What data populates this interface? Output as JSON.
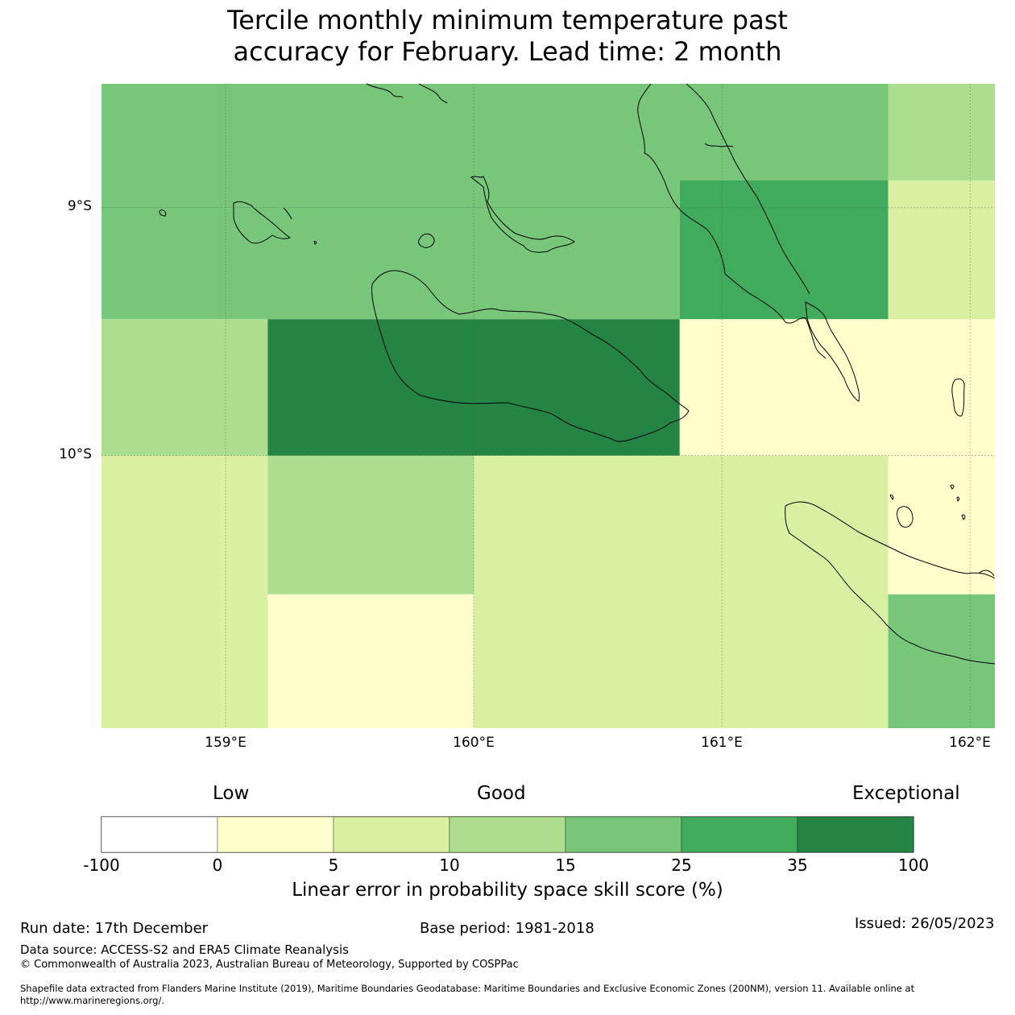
{
  "title_line1": "Tercile monthly minimum temperature past",
  "title_line2": "accuracy for February. Lead time: 2 month",
  "map": {
    "lat_labels": [
      "9°S",
      "10°S"
    ],
    "lon_labels": [
      "159°E",
      "160°E",
      "161°E",
      "162°E"
    ],
    "extent": {
      "lon_min": 158.5,
      "lon_max": 162.1,
      "lat_north": -8.5,
      "lat_south": -11.1
    },
    "cells": [
      {
        "lon0": 158.5,
        "lon1": 161.67,
        "lat0": -8.5,
        "lat1": -8.89,
        "bin": 4
      },
      {
        "lon0": 161.67,
        "lon1": 162.1,
        "lat0": -8.5,
        "lat1": -8.89,
        "bin": 3
      },
      {
        "lon0": 158.5,
        "lon1": 160.83,
        "lat0": -8.89,
        "lat1": -9.45,
        "bin": 4
      },
      {
        "lon0": 160.83,
        "lon1": 161.67,
        "lat0": -8.89,
        "lat1": -9.45,
        "bin": 5
      },
      {
        "lon0": 161.67,
        "lon1": 162.1,
        "lat0": -8.89,
        "lat1": -9.45,
        "bin": 2
      },
      {
        "lon0": 158.5,
        "lon1": 159.17,
        "lat0": -9.45,
        "lat1": -10.0,
        "bin": 3
      },
      {
        "lon0": 159.17,
        "lon1": 160.83,
        "lat0": -9.45,
        "lat1": -10.0,
        "bin": 6
      },
      {
        "lon0": 160.83,
        "lon1": 162.1,
        "lat0": -9.45,
        "lat1": -10.0,
        "bin": 1
      },
      {
        "lon0": 158.5,
        "lon1": 159.17,
        "lat0": -10.0,
        "lat1": -11.1,
        "bin": 2
      },
      {
        "lon0": 159.17,
        "lon1": 160.0,
        "lat0": -10.0,
        "lat1": -10.56,
        "bin": 3
      },
      {
        "lon0": 159.17,
        "lon1": 160.0,
        "lat0": -10.56,
        "lat1": -11.1,
        "bin": 1
      },
      {
        "lon0": 160.0,
        "lon1": 161.67,
        "lat0": -10.0,
        "lat1": -11.1,
        "bin": 2
      },
      {
        "lon0": 161.67,
        "lon1": 162.1,
        "lat0": -10.0,
        "lat1": -10.56,
        "bin": 1
      },
      {
        "lon0": 161.67,
        "lon1": 162.1,
        "lat0": -10.56,
        "lat1": -11.1,
        "bin": 4
      }
    ]
  },
  "colorbar": {
    "categories": [
      "Low",
      "Good",
      "Exceptional"
    ],
    "ticks": [
      "-100",
      "0",
      "5",
      "10",
      "15",
      "25",
      "35",
      "100"
    ],
    "colors": [
      "#ffffff",
      "#ffffcc",
      "#d9f0a3",
      "#addd8e",
      "#78c679",
      "#41ab5d",
      "#238443"
    ],
    "label": "Linear error in probability space skill score (%)"
  },
  "footer": {
    "run_date": "Run date: 17th December",
    "base_period": "Base period: 1981-2018",
    "issued": "Issued: 26/05/2023",
    "data_source": "Data source: ACCESS-S2 and ERA5 Climate Reanalysis",
    "copyright": "© Commonwealth of Australia 2023, Australian Bureau of Meteorology, Supported by COSPPac",
    "shapefile_line1": "Shapefile data extracted from Flanders Marine Institute (2019), Maritime Boundaries Geodatabase: Maritime Boundaries and Exclusive Economic Zones (200NM), version 11. Available online at",
    "shapefile_line2": "http://www.marineregions.org/."
  }
}
